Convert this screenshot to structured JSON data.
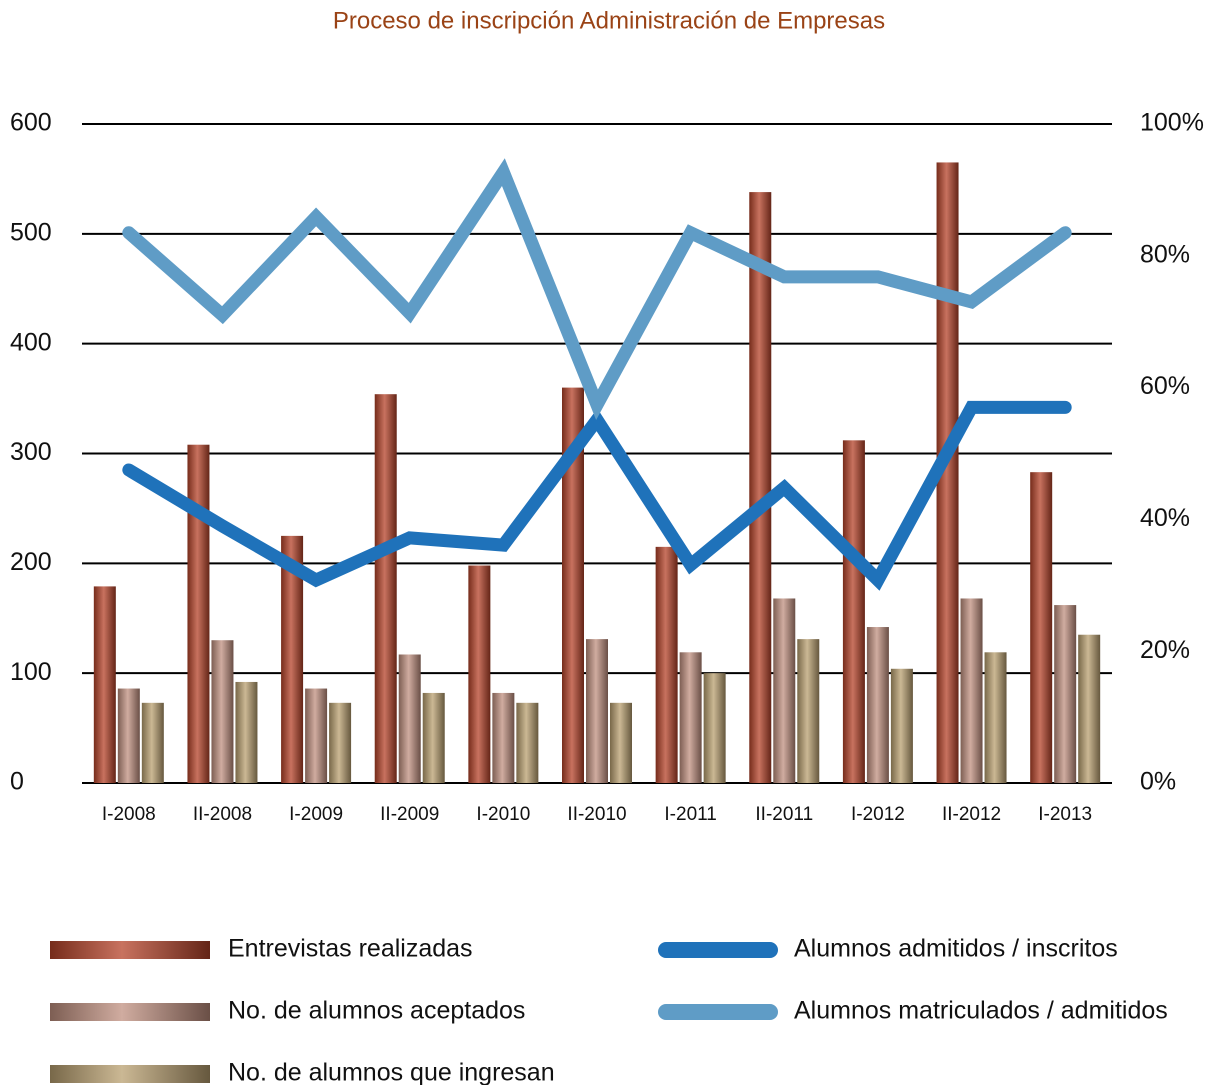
{
  "chart_data": {
    "type": "bar",
    "title": "Proceso de inscripción Administración de Empresas",
    "categories": [
      "I-2008",
      "II-2008",
      "I-2009",
      "II-2009",
      "I-2010",
      "II-2010",
      "I-2011",
      "II-2011",
      "I-2012",
      "II-2012",
      "I-2013"
    ],
    "series": [
      {
        "name": "Entrevistas realizadas",
        "color": "#b5432a",
        "values": [
          179,
          308,
          225,
          354,
          198,
          360,
          215,
          538,
          312,
          565,
          283
        ]
      },
      {
        "name": "No. de alumnos aceptados",
        "color": "#c09080",
        "values": [
          86,
          130,
          86,
          117,
          82,
          131,
          119,
          168,
          142,
          168,
          162
        ]
      },
      {
        "name": "No. de alumnos que ingresan",
        "color": "#b9a070",
        "values": [
          73,
          92,
          73,
          82,
          73,
          73,
          100,
          131,
          104,
          119,
          135
        ]
      },
      {
        "name": "Alumnos admitidos / inscritos",
        "color": "#1f72ba",
        "type": "line",
        "axis": "y2",
        "values": [
          47.5,
          39,
          30.8,
          37.2,
          36.1,
          55.1,
          33.1,
          44.8,
          30.8,
          57,
          57
        ]
      },
      {
        "name": "Alumnos matriculados / admitidos",
        "color": "#5f9cc6",
        "type": "line",
        "axis": "y2",
        "values": [
          83.5,
          71,
          85.9,
          71.3,
          92.7,
          57.4,
          83.5,
          76.8,
          76.8,
          73,
          83.5
        ]
      }
    ],
    "ylim": [
      0,
      600
    ],
    "yticks": [
      0,
      100,
      200,
      300,
      400,
      500,
      600
    ],
    "y2lim": [
      0,
      100
    ],
    "y2ticks": [
      {
        "value": 0,
        "label": "0%"
      },
      {
        "value": 20,
        "label": "20%"
      },
      {
        "value": 40,
        "label": "40%"
      },
      {
        "value": 60,
        "label": "60%"
      },
      {
        "value": 80,
        "label": "80%"
      },
      {
        "value": 100,
        "label": "100%"
      }
    ],
    "grid": true
  }
}
